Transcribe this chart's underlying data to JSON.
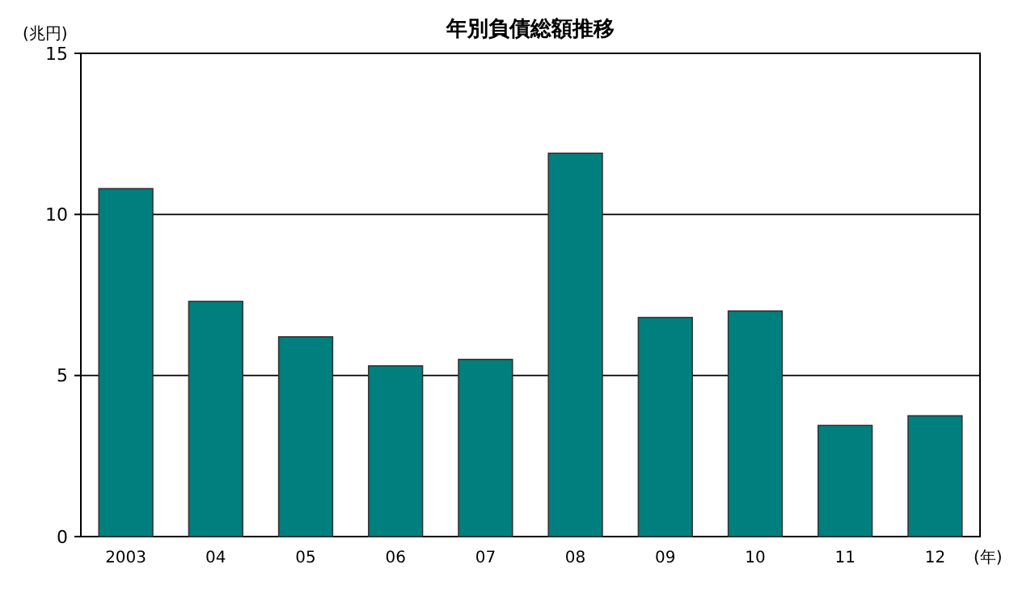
{
  "chart_data": {
    "type": "bar",
    "title": "年別負債総額推移",
    "ylabel": "(兆円)",
    "xlabel": "(年)",
    "categories": [
      "2003",
      "04",
      "05",
      "06",
      "07",
      "08",
      "09",
      "10",
      "11",
      "12"
    ],
    "values": [
      10.8,
      7.3,
      6.2,
      5.3,
      5.5,
      11.9,
      6.8,
      7.0,
      3.45,
      3.75
    ],
    "color": "#007f7f",
    "ylim": [
      0,
      15
    ],
    "yticks": [
      0,
      5,
      10,
      15
    ],
    "grid": "y"
  }
}
